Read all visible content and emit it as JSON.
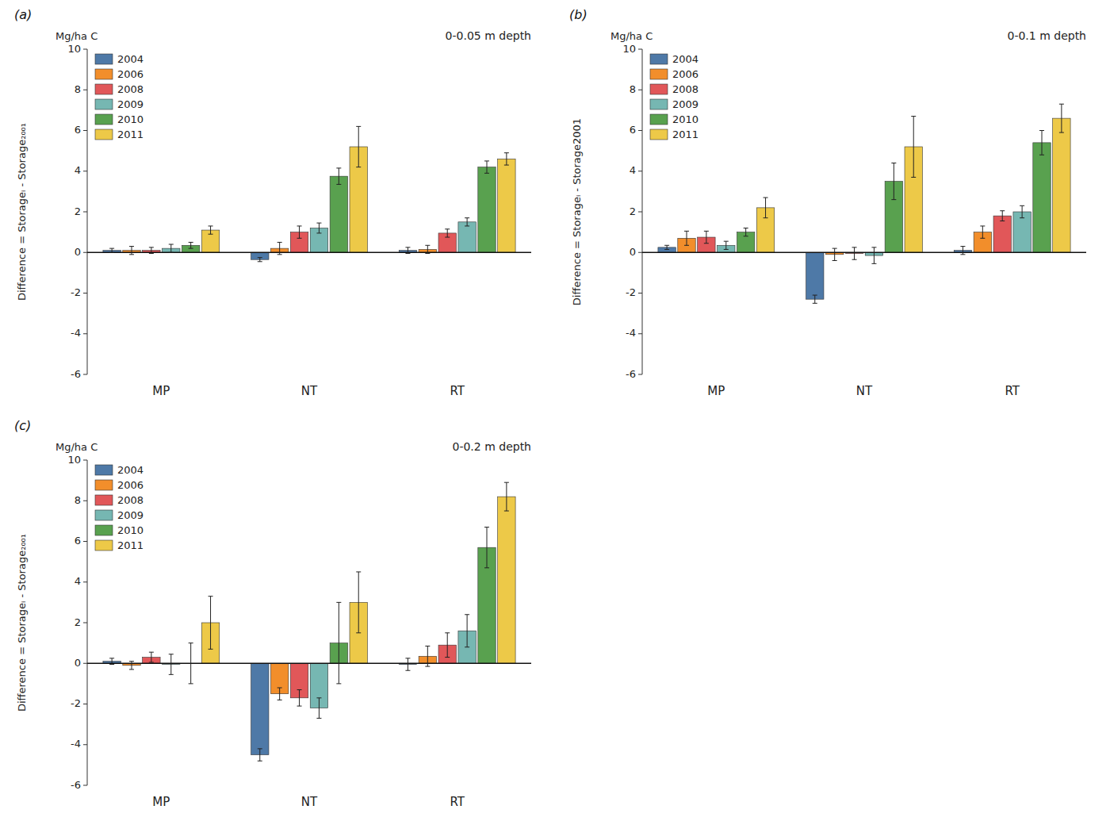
{
  "chart_data": [
    {
      "type": "bar",
      "title": "(a)",
      "subtitle": "0-0.05 m depth",
      "annotations": [
        "Mg/ha C"
      ],
      "y_label": "Difference = Storageᵢ - Storage₂₀₀₁",
      "categories": [
        "MP",
        "NT",
        "RT"
      ],
      "series": [
        {
          "name": "2004",
          "values": [
            0.1,
            -0.35,
            0.1
          ],
          "errors": [
            0.1,
            0.1,
            0.15
          ]
        },
        {
          "name": "2006",
          "values": [
            0.1,
            0.2,
            0.15
          ],
          "errors": [
            0.2,
            0.3,
            0.2
          ]
        },
        {
          "name": "2008",
          "values": [
            0.1,
            1.0,
            0.95
          ],
          "errors": [
            0.15,
            0.3,
            0.2
          ]
        },
        {
          "name": "2009",
          "values": [
            0.2,
            1.2,
            1.5
          ],
          "errors": [
            0.2,
            0.25,
            0.2
          ]
        },
        {
          "name": "2010",
          "values": [
            0.35,
            3.75,
            4.2
          ],
          "errors": [
            0.15,
            0.4,
            0.3
          ]
        },
        {
          "name": "2011",
          "values": [
            1.1,
            5.2,
            4.6
          ],
          "errors": [
            0.2,
            1.0,
            0.3
          ]
        }
      ],
      "ylim": [
        -6,
        10
      ],
      "yticks": [
        -6,
        -4,
        -2,
        0,
        2,
        4,
        6,
        8,
        10
      ],
      "grid": false,
      "legend": "upper left"
    },
    {
      "type": "bar",
      "title": "(b)",
      "subtitle": "0-0.1 m depth",
      "annotations": [
        "Mg/ha C"
      ],
      "y_label": "Difference = Storageᵢ - Storage2001",
      "categories": [
        "MP",
        "NT",
        "RT"
      ],
      "series": [
        {
          "name": "2004",
          "values": [
            0.25,
            -2.3,
            0.1
          ],
          "errors": [
            0.1,
            0.2,
            0.2
          ]
        },
        {
          "name": "2006",
          "values": [
            0.7,
            -0.1,
            1.0
          ],
          "errors": [
            0.35,
            0.3,
            0.3
          ]
        },
        {
          "name": "2008",
          "values": [
            0.75,
            -0.05,
            1.8
          ],
          "errors": [
            0.3,
            0.3,
            0.25
          ]
        },
        {
          "name": "2009",
          "values": [
            0.35,
            -0.15,
            2.0
          ],
          "errors": [
            0.2,
            0.4,
            0.3
          ]
        },
        {
          "name": "2010",
          "values": [
            1.0,
            3.5,
            5.4
          ],
          "errors": [
            0.2,
            0.9,
            0.6
          ]
        },
        {
          "name": "2011",
          "values": [
            2.2,
            5.2,
            6.6
          ],
          "errors": [
            0.5,
            1.5,
            0.7
          ]
        }
      ],
      "ylim": [
        -6,
        10
      ],
      "yticks": [
        -6,
        -4,
        -2,
        0,
        2,
        4,
        6,
        8,
        10
      ],
      "grid": false,
      "legend": "upper left"
    },
    {
      "type": "bar",
      "title": "(c)",
      "subtitle": "0-0.2 m depth",
      "annotations": [
        "Mg/ha C"
      ],
      "y_label": "Difference = Storageᵢ - Storage₂₀₀₁",
      "categories": [
        "MP",
        "NT",
        "RT"
      ],
      "series": [
        {
          "name": "2004",
          "values": [
            0.1,
            -4.5,
            -0.05
          ],
          "errors": [
            0.15,
            0.3,
            0.3
          ]
        },
        {
          "name": "2006",
          "values": [
            -0.1,
            -1.5,
            0.35
          ],
          "errors": [
            0.2,
            0.3,
            0.5
          ]
        },
        {
          "name": "2008",
          "values": [
            0.3,
            -1.7,
            0.9
          ],
          "errors": [
            0.25,
            0.4,
            0.6
          ]
        },
        {
          "name": "2009",
          "values": [
            -0.05,
            -2.2,
            1.6
          ],
          "errors": [
            0.5,
            0.5,
            0.8
          ]
        },
        {
          "name": "2010",
          "values": [
            0.0,
            1.0,
            5.7
          ],
          "errors": [
            1.0,
            2.0,
            1.0
          ]
        },
        {
          "name": "2011",
          "values": [
            2.0,
            3.0,
            8.2
          ],
          "errors": [
            1.3,
            1.5,
            0.7
          ]
        }
      ],
      "ylim": [
        -6,
        10
      ],
      "yticks": [
        -6,
        -4,
        -2,
        0,
        2,
        4,
        6,
        8,
        10
      ],
      "grid": false,
      "legend": "upper left"
    }
  ]
}
